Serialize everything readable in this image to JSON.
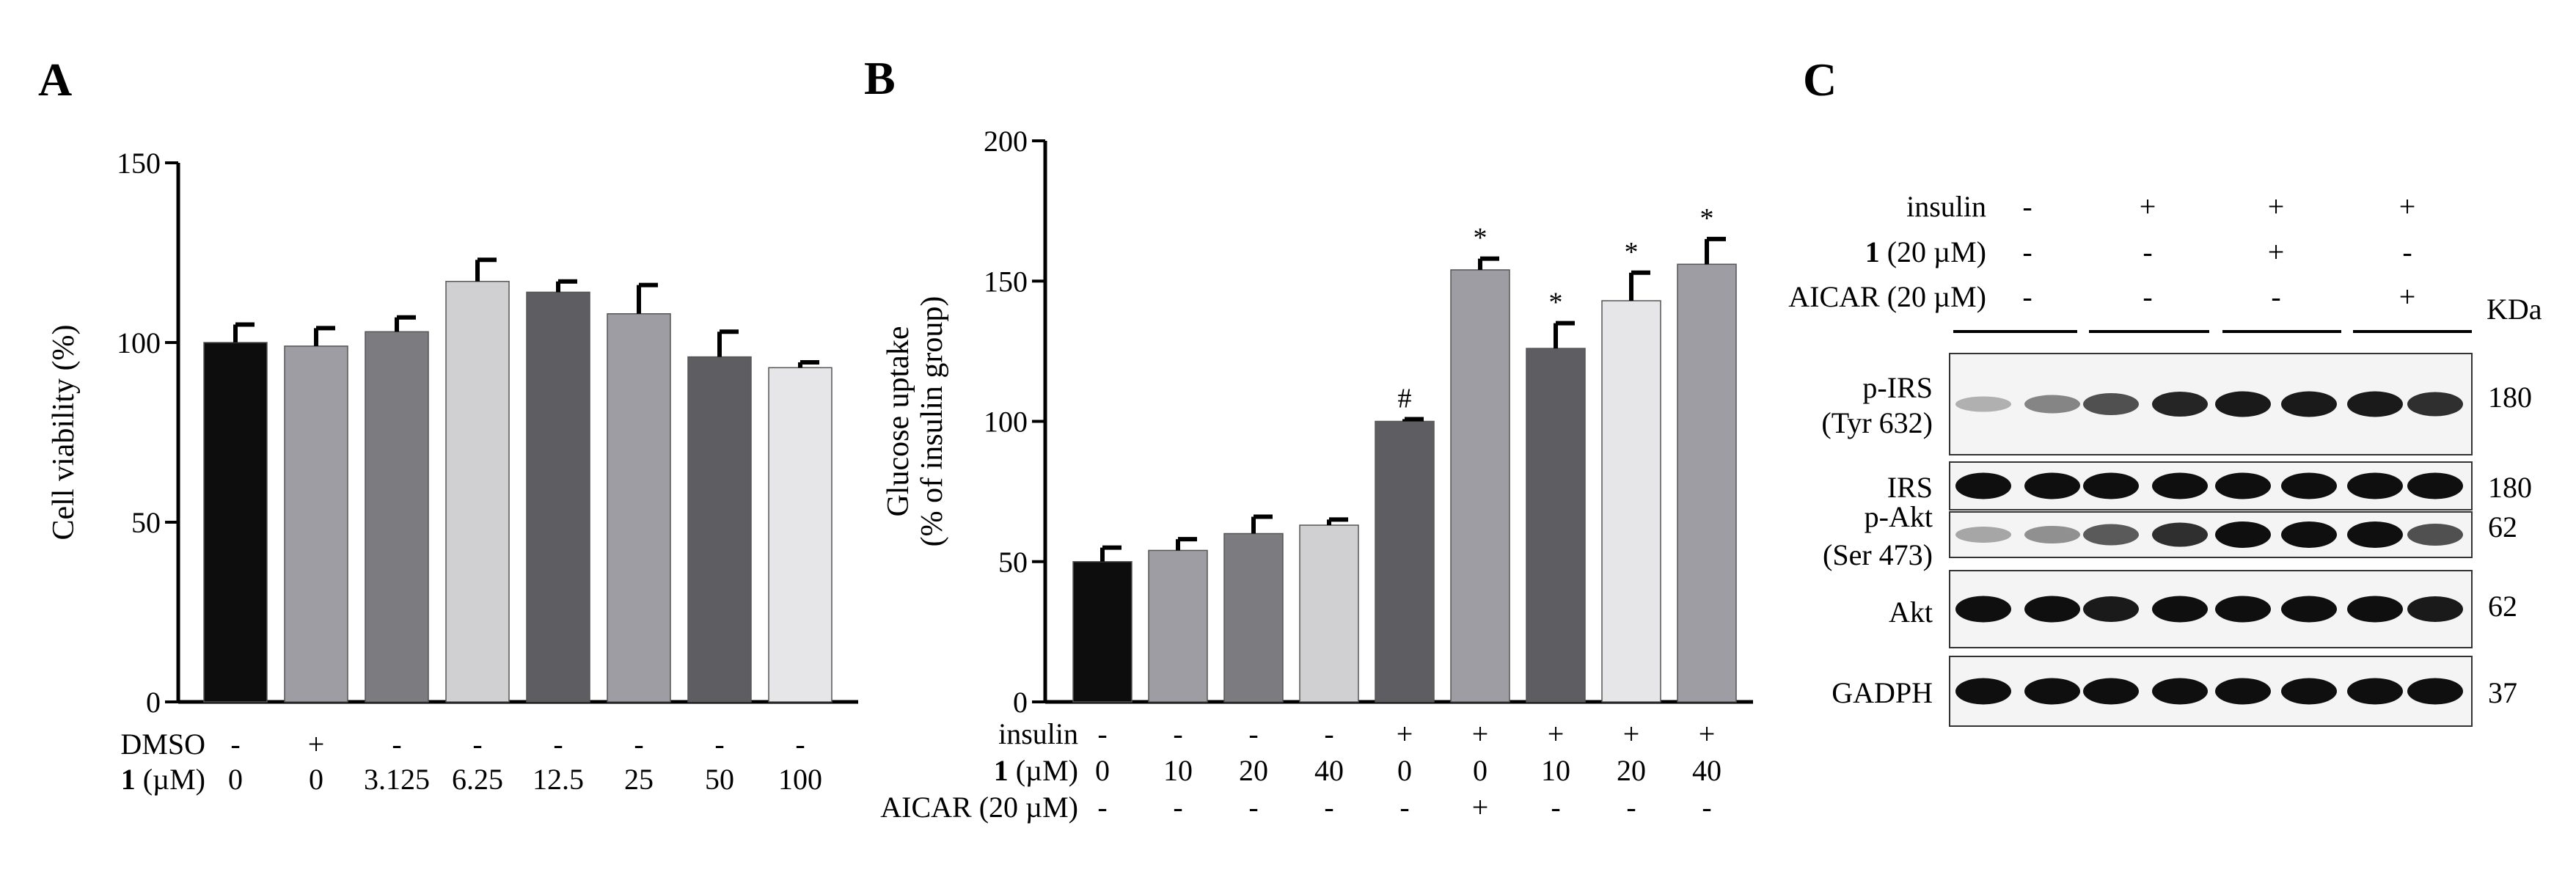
{
  "panel_labels": {
    "a": "A",
    "b": "B",
    "c": "C"
  },
  "chart_data": [
    {
      "type": "bar",
      "panel": "A",
      "title": "",
      "xlabel": "",
      "ylabel": "Cell viability (%)",
      "ylim": [
        0,
        150
      ],
      "yticks": [
        "0",
        "50",
        "100",
        "150"
      ],
      "values": [
        100,
        99,
        103,
        117,
        114,
        108,
        96,
        93
      ],
      "errors": [
        5,
        5,
        4,
        6,
        3,
        8,
        7,
        1.5
      ],
      "colors": [
        "#0d0d0d",
        "#9d9da3",
        "#7c7c80",
        "#d0d0d2",
        "#5e5e62",
        "#9d9da3",
        "#5e5e62",
        "#e6e6e8"
      ],
      "rows": [
        {
          "label": "DMSO",
          "label_suffix": "",
          "cells": [
            "-",
            "+",
            "-",
            "-",
            "-",
            "-",
            "-",
            "-"
          ]
        },
        {
          "label": "1",
          "label_suffix": " (µM)",
          "cells": [
            "0",
            "0",
            "3.125",
            "6.25",
            "12.5",
            "25",
            "50",
            "100"
          ]
        }
      ]
    },
    {
      "type": "bar",
      "panel": "B",
      "title": "",
      "xlabel": "",
      "ylabel": "Glucose uptake",
      "ylabel2": "(% of insulin group)",
      "ylim": [
        0,
        200
      ],
      "yticks": [
        "0",
        "50",
        "100",
        "150",
        "200"
      ],
      "values": [
        50,
        54,
        60,
        63,
        100,
        154,
        126,
        143,
        156
      ],
      "errors": [
        5,
        4,
        6,
        2,
        0.8,
        4,
        9,
        10,
        9
      ],
      "annotations": [
        "",
        "",
        "",
        "",
        "#",
        "*",
        "*",
        "*",
        "*"
      ],
      "colors": [
        "#0d0d0d",
        "#9d9da3",
        "#7c7c80",
        "#d0d0d2",
        "#5e5e62",
        "#9d9da3",
        "#5e5e62",
        "#e6e6e8",
        "#9d9da3"
      ],
      "rows": [
        {
          "label": "insulin",
          "label_suffix": "",
          "cells": [
            "-",
            "-",
            "-",
            "-",
            "+",
            "+",
            "+",
            "+",
            "+"
          ]
        },
        {
          "label": "1",
          "label_suffix": " (µM)",
          "cells": [
            "0",
            "10",
            "20",
            "40",
            "0",
            "0",
            "10",
            "20",
            "40"
          ]
        },
        {
          "label": "AICAR (20 µM)",
          "label_suffix": "",
          "cells": [
            "-",
            "-",
            "-",
            "-",
            "-",
            "+",
            "-",
            "-",
            "-"
          ]
        }
      ]
    }
  ],
  "blot": {
    "header_rows": [
      {
        "label": "insulin",
        "label_suffix": "",
        "cells": [
          "-",
          "+",
          "+",
          "+"
        ]
      },
      {
        "label": "1",
        "label_suffix": " (20 µM)",
        "cells": [
          "-",
          "-",
          "+",
          "-"
        ]
      },
      {
        "label": "AICAR (20 µM)",
        "label_suffix": "",
        "cells": [
          "-",
          "-",
          "-",
          "+"
        ]
      }
    ],
    "unit": "KDa",
    "rows": [
      {
        "label": "p-IRS",
        "label2": "(Tyr 632)",
        "kda": "180",
        "intensity": [
          0.25,
          0.45,
          0.7,
          0.9,
          0.95,
          0.95,
          0.95,
          0.85
        ]
      },
      {
        "label": "IRS",
        "label2": "",
        "kda": "180",
        "intensity": [
          1,
          1,
          1,
          1,
          1,
          1,
          1,
          1
        ]
      },
      {
        "label": "p-Akt",
        "label2": "(Ser 473)",
        "kda": "62",
        "intensity": [
          0.3,
          0.4,
          0.65,
          0.85,
          1,
          1,
          1,
          0.7
        ]
      },
      {
        "label": "Akt",
        "label2": "",
        "kda": "62",
        "intensity": [
          1,
          1,
          0.95,
          1,
          1,
          1,
          1,
          0.95
        ]
      },
      {
        "label": "GADPH",
        "label2": "",
        "kda": "37",
        "intensity": [
          1,
          1,
          1,
          1,
          1,
          1,
          1,
          1
        ]
      }
    ]
  }
}
